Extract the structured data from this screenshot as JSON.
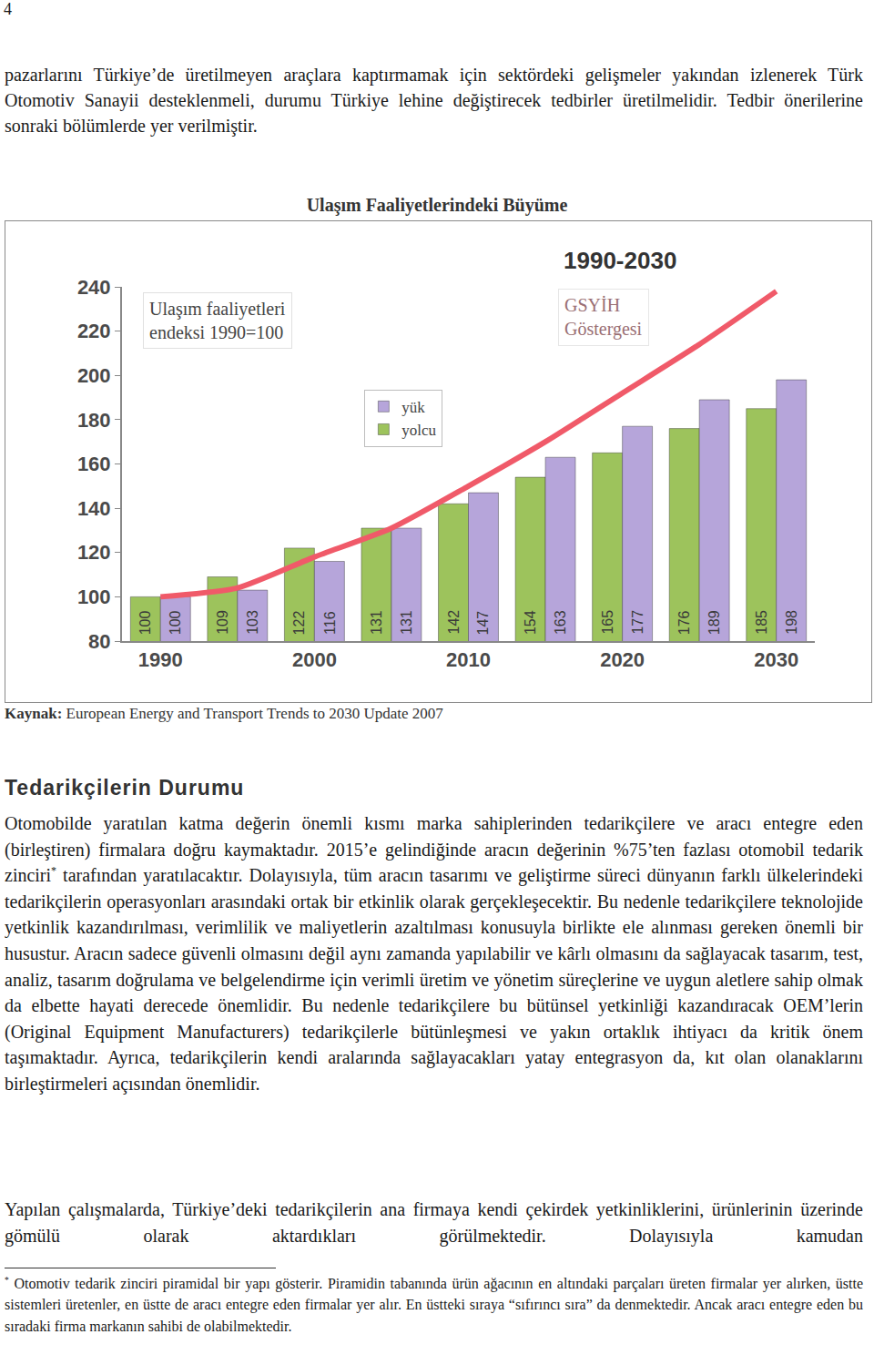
{
  "page": {
    "page_number": "4",
    "intro_paragraph": "pazarlarını Türkiye’de üretilmeyen araçlara kaptırmamak için sektördeki gelişmeler yakından izlenerek Türk Otomotiv Sanayii desteklenmeli, durumu Türkiye lehine değiştirecek tedbirler üretilmelidir. Tedbir önerilerine sonraki bölümlerde yer verilmiştir.",
    "source_label": "Kaynak:",
    "source_text": "European Energy and Transport Trends to 2030 Update 2007",
    "section_heading": "Tedarikçilerin Durumu",
    "paragraph_1": {
      "text_before": "Otomobilde yaratılan katma değerin önemli kısmı marka sahiplerinden tedarikçilere ve aracı entegre eden (birleştiren) firmalara doğru kaymaktadır. 2015’e gelindiğinde aracın değerinin %75’ten fazlası otomobil tedarik zinciri",
      "footnote_mark": "*",
      "text_after": " tarafından yaratılacaktır. Dolayısıyla, tüm aracın tasarımı ve geliştirme süreci dünyanın farklı ülkelerindeki tedarikçilerin operasyonları arasındaki ortak bir etkinlik olarak gerçekleşecektir. Bu nedenle tedarikçilere teknolojide yetkinlik kazandırılması, verimlilik ve maliyetlerin azaltılması konusuyla birlikte ele alınması gereken önemli bir husustur. Aracın sadece güvenli olmasını değil aynı zamanda yapılabilir ve kârlı olmasını da sağlayacak tasarım, test, analiz, tasarım doğrulama ve belgelendirme için verimli üretim ve yönetim süreçlerine ve uygun aletlere sahip olmak da elbette hayati derecede önemlidir. Bu nedenle tedarikçilere bu bütünsel yetkinliği kazandıracak OEM’lerin (Original Equipment Manufacturers) tedarikçilerle bütünleşmesi ve yakın ortaklık ihtiyacı da kritik önem taşımaktadır. Ayrıca, tedarikçilerin kendi aralarında sağlayacakları yatay entegrasyon da, kıt olan olanaklarını birleştirmeleri açısından önemlidir."
    },
    "paragraph_2": "Yapılan çalışmalarda, Türkiye’deki tedarikçilerin ana firmaya kendi çekirdek yetkinliklerini, ürünlerinin üzerinde gömülü olarak aktardıkları görülmektedir. Dolayısıyla kamudan",
    "footnote": {
      "mark": "*",
      "text": " Otomotiv tedarik zinciri piramidal bir yapı gösterir. Piramidin tabanında ürün ağacının en altındaki parçaları üreten firmalar yer alırken, üstte sistemleri üretenler, en üstte de aracı entegre eden firmalar yer alır. En üstteki sıraya “sıfırıncı sıra” da denmektedir. Ancak aracı entegre eden bu sıradaki firma markanın sahibi de olabilmektedir."
    }
  },
  "chart_data": {
    "type": "bar",
    "title": "Ulaşım Faaliyetlerindeki Büyüme",
    "subtitle": "1990-2030",
    "y_label": "Ulaşım faaliyetleri endeksi 1990=100",
    "categories": [
      "1990",
      null,
      "2000",
      null,
      "2010",
      null,
      "2020",
      null,
      "2030"
    ],
    "series": [
      {
        "name": "yolcu",
        "color": "#9dc35c",
        "values": [
          100,
          109,
          122,
          131,
          142,
          154,
          165,
          176,
          185
        ]
      },
      {
        "name": "yük",
        "color": "#b6a5da",
        "values": [
          100,
          103,
          116,
          131,
          147,
          163,
          177,
          189,
          198
        ]
      },
      {
        "name": "GSYİH Göstergesi",
        "type": "line",
        "color": "#f05a69",
        "values": [
          100,
          104,
          118,
          131,
          150,
          170,
          192,
          214,
          238
        ]
      }
    ],
    "ylim": [
      80,
      240
    ],
    "yticks": [
      80,
      100,
      120,
      140,
      160,
      180,
      200,
      220,
      240
    ],
    "grid": false,
    "legend": "top",
    "data_labels": true
  }
}
